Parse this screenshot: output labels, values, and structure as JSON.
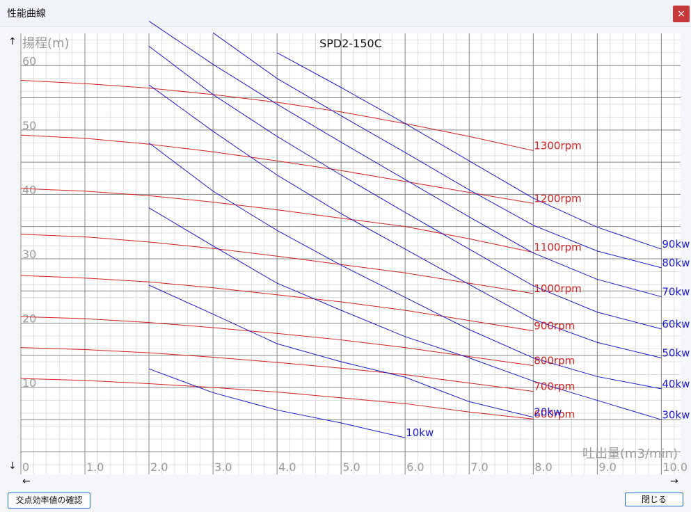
{
  "window": {
    "title": "性能曲線",
    "close_glyph": "×"
  },
  "arrows": {
    "up": "↑",
    "down": "↓",
    "left": "←",
    "right": "→"
  },
  "buttons": {
    "check_label": "交点効率値の確認",
    "close_label": "閉じる"
  },
  "colors": {
    "rpm": "#d62020",
    "kw": "#1a1ad6",
    "major_grid": "#888888",
    "minor_grid": "#d8d8d8",
    "tick_text": "#9a9a9a"
  },
  "chart_data": {
    "type": "line",
    "title": "SPD2-150C",
    "ylabel": "揚程(m)",
    "xlabel": "吐出量(m3/min)",
    "xlim": [
      0,
      10.3
    ],
    "ylim": [
      -3.5,
      65
    ],
    "x_ticks": [
      "0",
      "1.0",
      "2.0",
      "3.0",
      "4.0",
      "5.0",
      "6.0",
      "7.0",
      "8.0",
      "9.0",
      "10.0"
    ],
    "y_ticks": [
      "10",
      "20",
      "30",
      "40",
      "50",
      "60"
    ],
    "grid": true,
    "rpm_series": [
      {
        "name": "1300rpm",
        "x": [
          0,
          1,
          2,
          3,
          4,
          5,
          6,
          7,
          8
        ],
        "y": [
          57.7,
          57.2,
          56.5,
          55.5,
          54.3,
          52.8,
          51.0,
          49.0,
          46.8
        ]
      },
      {
        "name": "1200rpm",
        "x": [
          0,
          1,
          2,
          3,
          4,
          5,
          6,
          7,
          8
        ],
        "y": [
          49.2,
          48.7,
          47.8,
          46.6,
          45.2,
          43.7,
          42.0,
          40.3,
          38.6
        ]
      },
      {
        "name": "1100rpm",
        "x": [
          0,
          1,
          2,
          3,
          4,
          5,
          6,
          7,
          8
        ],
        "y": [
          40.9,
          40.5,
          39.8,
          38.8,
          37.6,
          36.3,
          35.0,
          33.1,
          31.0
        ]
      },
      {
        "name": "1000rpm",
        "x": [
          0,
          1,
          2,
          3,
          4,
          5,
          6,
          7,
          8
        ],
        "y": [
          33.8,
          33.4,
          32.6,
          31.6,
          30.4,
          29.1,
          27.8,
          26.2,
          24.6
        ]
      },
      {
        "name": "900rpm",
        "x": [
          0,
          1,
          2,
          3,
          4,
          5,
          6,
          7,
          8
        ],
        "y": [
          27.4,
          27.0,
          26.4,
          25.5,
          24.4,
          23.3,
          22.0,
          20.4,
          18.8
        ]
      },
      {
        "name": "800rpm",
        "x": [
          0,
          1,
          2,
          3,
          4,
          5,
          6,
          7,
          8
        ],
        "y": [
          21.0,
          20.7,
          20.1,
          19.3,
          18.4,
          17.4,
          16.2,
          14.8,
          13.4
        ]
      },
      {
        "name": "700rpm",
        "x": [
          0,
          1,
          2,
          3,
          4,
          5,
          6,
          7,
          8
        ],
        "y": [
          16.2,
          15.9,
          15.4,
          14.7,
          13.9,
          13.0,
          12.0,
          10.7,
          9.4
        ]
      },
      {
        "name": "600rpm",
        "x": [
          0,
          1,
          2,
          3,
          4,
          5,
          6,
          7,
          8
        ],
        "y": [
          11.4,
          11.1,
          10.6,
          10.0,
          9.3,
          8.4,
          7.5,
          6.2,
          5.1
        ]
      }
    ],
    "kw_series": [
      {
        "name": "10kw",
        "x": [
          2,
          3,
          4,
          5,
          6
        ],
        "y": [
          12.9,
          9.2,
          6.5,
          4.5,
          2.2
        ]
      },
      {
        "name": "20kw",
        "x": [
          2,
          3,
          4,
          5,
          6,
          7,
          8
        ],
        "y": [
          25.9,
          21.4,
          16.8,
          14.0,
          11.6,
          7.8,
          5.4
        ]
      },
      {
        "name": "30kw",
        "x": [
          2,
          3,
          4,
          5,
          6,
          7,
          8,
          9,
          10
        ],
        "y": [
          37.9,
          32.0,
          26.2,
          22.0,
          17.9,
          14.6,
          11.0,
          8.0,
          5.0
        ]
      },
      {
        "name": "40kw",
        "x": [
          2,
          3,
          4,
          5,
          6,
          7,
          8,
          9,
          10
        ],
        "y": [
          48.0,
          40.5,
          34.4,
          29.0,
          24.0,
          19.0,
          14.6,
          11.7,
          9.8
        ]
      },
      {
        "name": "50kw",
        "x": [
          2,
          3,
          4,
          5,
          6,
          7,
          8,
          9,
          10
        ],
        "y": [
          57.0,
          49.8,
          43.0,
          37.0,
          31.5,
          26.0,
          20.6,
          17.0,
          14.6
        ]
      },
      {
        "name": "60kw",
        "x": [
          2,
          3,
          4,
          5,
          6,
          7,
          8,
          9,
          10
        ],
        "y": [
          63.0,
          55.5,
          49.0,
          43.0,
          37.2,
          31.5,
          25.8,
          21.7,
          19.1
        ]
      },
      {
        "name": "70kw",
        "x": [
          2,
          3,
          4,
          5,
          6,
          7,
          8,
          9,
          10
        ],
        "y": [
          66.9,
          60.2,
          54.0,
          48.1,
          42.3,
          36.5,
          30.9,
          26.8,
          24.1
        ]
      },
      {
        "name": "80kw",
        "x": [
          3,
          4,
          5,
          6,
          7,
          8,
          9,
          10
        ],
        "y": [
          65.1,
          58.0,
          52.2,
          46.5,
          40.7,
          35.2,
          31.2,
          28.6
        ]
      },
      {
        "name": "90kw",
        "x": [
          4,
          5,
          6,
          7,
          8,
          9,
          10
        ],
        "y": [
          62.0,
          56.6,
          51.0,
          45.2,
          39.4,
          34.9,
          31.5
        ]
      }
    ]
  }
}
